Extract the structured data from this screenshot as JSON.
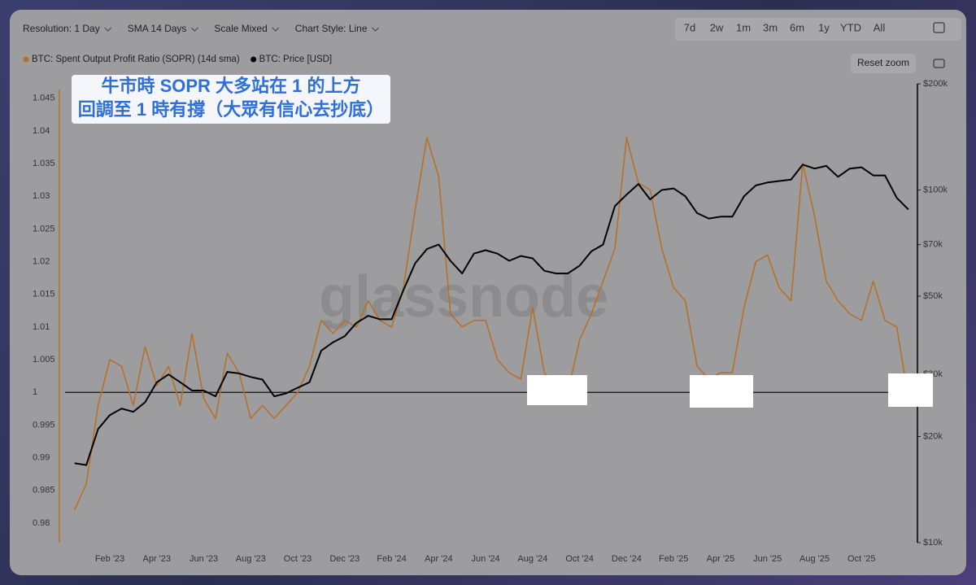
{
  "toolbar": {
    "controls": [
      "Resolution: 1 Day",
      "SMA 14 Days",
      "Scale Mixed",
      "Chart Style: Line"
    ],
    "ranges": [
      "7d",
      "2w",
      "1m",
      "3m",
      "6m",
      "1y",
      "YTD",
      "All"
    ],
    "reset": "Reset zoom"
  },
  "watermark": "glassnode",
  "chart_data": {
    "type": "line",
    "annotation": [
      "牛市時 SOPR 大多站在 1 的上方",
      "回調至 1 時有撐（大眾有信心去抄底）"
    ],
    "categories": [
      null,
      null,
      null,
      "Feb '23",
      null,
      null,
      null,
      "Apr '23",
      null,
      null,
      null,
      "Jun '23",
      null,
      null,
      null,
      "Aug '23",
      null,
      null,
      null,
      "Oct '23",
      null,
      null,
      null,
      "Dec '23",
      null,
      null,
      null,
      "Feb '24",
      null,
      null,
      null,
      "Apr '24",
      null,
      null,
      null,
      "Jun '24",
      null,
      null,
      null,
      "Aug '24",
      null,
      null,
      null,
      "Oct '24",
      null,
      null,
      null,
      "Dec '24",
      null,
      null,
      null,
      "Feb '25",
      null,
      null,
      null,
      "Apr '25",
      null,
      null,
      null,
      "Jun '25",
      null,
      null,
      null,
      "Aug '25",
      null,
      null,
      null,
      "Oct '25",
      null,
      null,
      null,
      null
    ],
    "series": [
      {
        "name": "BTC: Spent Output Profit Ratio (SOPR) (14d sma)",
        "color": "#b5712c",
        "values": [
          0.982,
          0.986,
          0.998,
          1.005,
          1.004,
          0.998,
          1.007,
          1.001,
          1.004,
          0.998,
          1.009,
          0.999,
          0.996,
          1.006,
          1.003,
          0.996,
          0.998,
          0.996,
          0.998,
          1.0,
          1.004,
          1.011,
          1.009,
          1.011,
          1.01,
          1.014,
          1.011,
          1.01,
          1.016,
          1.028,
          1.039,
          1.033,
          1.012,
          1.01,
          1.011,
          1.011,
          1.005,
          1.003,
          1.002,
          1.013,
          1.003,
          1.001,
          1.0,
          1.008,
          1.012,
          1.017,
          1.022,
          1.039,
          1.032,
          1.031,
          1.022,
          1.016,
          1.014,
          1.004,
          1.002,
          1.003,
          1.003,
          1.013,
          1.02,
          1.021,
          1.016,
          1.014,
          1.035,
          1.027,
          1.017,
          1.014,
          1.012,
          1.011,
          1.017,
          1.011,
          1.01,
          0.999
        ]
      },
      {
        "name": "BTC: Price [USD]",
        "color": "#000000",
        "axis": "y2",
        "values": [
          16800,
          16600,
          21000,
          23000,
          24000,
          23500,
          25000,
          28500,
          30000,
          28500,
          27000,
          27000,
          26000,
          30500,
          30200,
          29500,
          29000,
          26000,
          26500,
          27500,
          28500,
          35000,
          37000,
          38500,
          42000,
          44000,
          43000,
          43000,
          52000,
          62000,
          68000,
          70000,
          63000,
          58000,
          66000,
          67500,
          66000,
          63000,
          65000,
          64000,
          59000,
          58000,
          58000,
          61000,
          67000,
          70000,
          90000,
          97000,
          104000,
          94000,
          100000,
          101000,
          96000,
          86000,
          83000,
          84000,
          84000,
          96000,
          103000,
          105000,
          106000,
          107000,
          118000,
          115000,
          117000,
          109000,
          115000,
          116000,
          110000,
          110000,
          95000,
          88000
        ]
      }
    ],
    "ylim": [
      0.977,
      1.0472
    ],
    "yticks": [
      0.98,
      0.985,
      0.99,
      0.995,
      1,
      1.005,
      1.01,
      1.015,
      1.02,
      1.025,
      1.03,
      1.035,
      1.04,
      1.045
    ],
    "y2lim": [
      10000,
      200000
    ],
    "y2scale": "log",
    "y2ticks": [
      {
        "value": 10000,
        "label": "$10k"
      },
      {
        "value": 20000,
        "label": "$20k"
      },
      {
        "value": 30000,
        "label": "$30k"
      },
      {
        "value": 50000,
        "label": "$50k"
      },
      {
        "value": 70000,
        "label": "$70k"
      },
      {
        "value": 100000,
        "label": "$100k"
      },
      {
        "value": 200000,
        "label": "$200k"
      }
    ],
    "hline": 1
  }
}
